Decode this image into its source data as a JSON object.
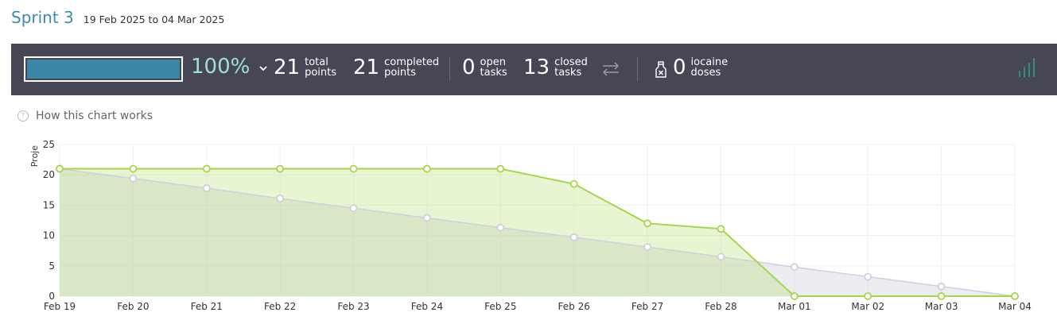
{
  "header": {
    "title": "Sprint 3",
    "dates": "19 Feb 2025 to 04 Mar 2025"
  },
  "summary": {
    "progress_percent": 100,
    "progress_label": "100%",
    "total_points": {
      "value": "21",
      "line1": "total",
      "line2": "points"
    },
    "completed_points": {
      "value": "21",
      "line1": "completed",
      "line2": "points"
    },
    "open_tasks": {
      "value": "0",
      "line1": "open",
      "line2": "tasks"
    },
    "closed_tasks": {
      "value": "13",
      "line1": "closed",
      "line2": "tasks"
    },
    "iocaine": {
      "value": "0",
      "line1": "iocaine",
      "line2": "doses"
    },
    "icons": [
      "chevron-down-icon",
      "swap-arrows-icon",
      "potion-bottle-icon",
      "signal-bars-icon"
    ],
    "colors": {
      "bar_background": "#464655",
      "progress_fill": "#3a86a6",
      "percent_text": "#9ee0d4",
      "signal_icon": "#2f9e8c"
    }
  },
  "help": {
    "label": "How this chart works"
  },
  "chart_data": {
    "type": "area",
    "ylabel": "Proje",
    "ylim": [
      0,
      25
    ],
    "yticks": [
      0,
      5,
      10,
      15,
      20,
      25
    ],
    "categories": [
      "Feb 19",
      "Feb 20",
      "Feb 21",
      "Feb 22",
      "Feb 23",
      "Feb 24",
      "Feb 25",
      "Feb 26",
      "Feb 27",
      "Feb 28",
      "Mar 01",
      "Mar 02",
      "Mar 03",
      "Mar 04"
    ],
    "series": [
      {
        "values": [
          21,
          21,
          21,
          21,
          21,
          21,
          21,
          18.5,
          12,
          11.1,
          0,
          0,
          0,
          0
        ],
        "color": "#a5d64a"
      },
      {
        "values": [
          21,
          19.4,
          17.8,
          16.1,
          14.5,
          12.9,
          11.3,
          9.7,
          8.1,
          6.5,
          4.8,
          3.2,
          1.6,
          0
        ],
        "color": "#cfcfe0"
      }
    ],
    "grid": true
  }
}
